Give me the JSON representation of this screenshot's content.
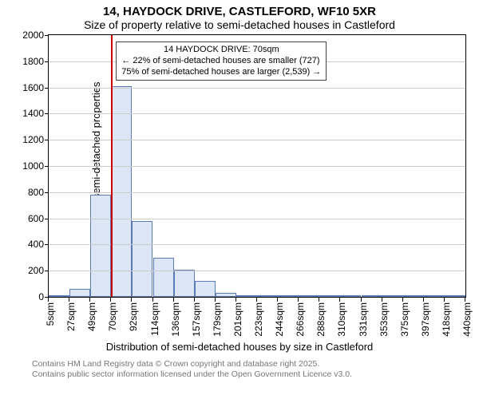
{
  "title_main": "14, HAYDOCK DRIVE, CASTLEFORD, WF10 5XR",
  "title_sub": "Size of property relative to semi-detached houses in Castleford",
  "y_axis": {
    "title": "Number of semi-detached properties",
    "min": 0,
    "max": 2000,
    "tick_step": 200,
    "ticks": [
      0,
      200,
      400,
      600,
      800,
      1000,
      1200,
      1400,
      1600,
      1800,
      2000
    ],
    "label_fontsize": 12
  },
  "x_axis": {
    "title": "Distribution of semi-detached houses by size in Castleford",
    "tick_labels": [
      "5sqm",
      "27sqm",
      "49sqm",
      "70sqm",
      "92sqm",
      "114sqm",
      "136sqm",
      "157sqm",
      "179sqm",
      "201sqm",
      "223sqm",
      "244sqm",
      "266sqm",
      "288sqm",
      "310sqm",
      "331sqm",
      "353sqm",
      "375sqm",
      "397sqm",
      "418sqm",
      "440sqm"
    ],
    "label_fontsize": 12
  },
  "histogram": {
    "type": "histogram",
    "values": [
      0,
      60,
      780,
      1610,
      580,
      300,
      210,
      120,
      30,
      12,
      8,
      6,
      4,
      4,
      3,
      2,
      2,
      2,
      1,
      1
    ],
    "bar_fill": "#dce6f7",
    "bar_stroke": "#5b7bb4",
    "bar_stroke_width": 1
  },
  "subject_marker": {
    "bin_index": 3,
    "color": "#cc0000",
    "width": 2
  },
  "annotation": {
    "lines": [
      "14 HAYDOCK DRIVE: 70sqm",
      "← 22% of semi-detached houses are smaller (727)",
      "75% of semi-detached houses are larger (2,539) →"
    ],
    "border_color": "#444444",
    "background": "#ffffff",
    "fontsize": 11
  },
  "grid": {
    "color": "#cccccc"
  },
  "background_color": "#ffffff",
  "attribution": {
    "line1": "Contains HM Land Registry data © Crown copyright and database right 2025.",
    "line2": "Contains public sector information licensed under the Open Government Licence v3.0.",
    "color": "#777777"
  }
}
